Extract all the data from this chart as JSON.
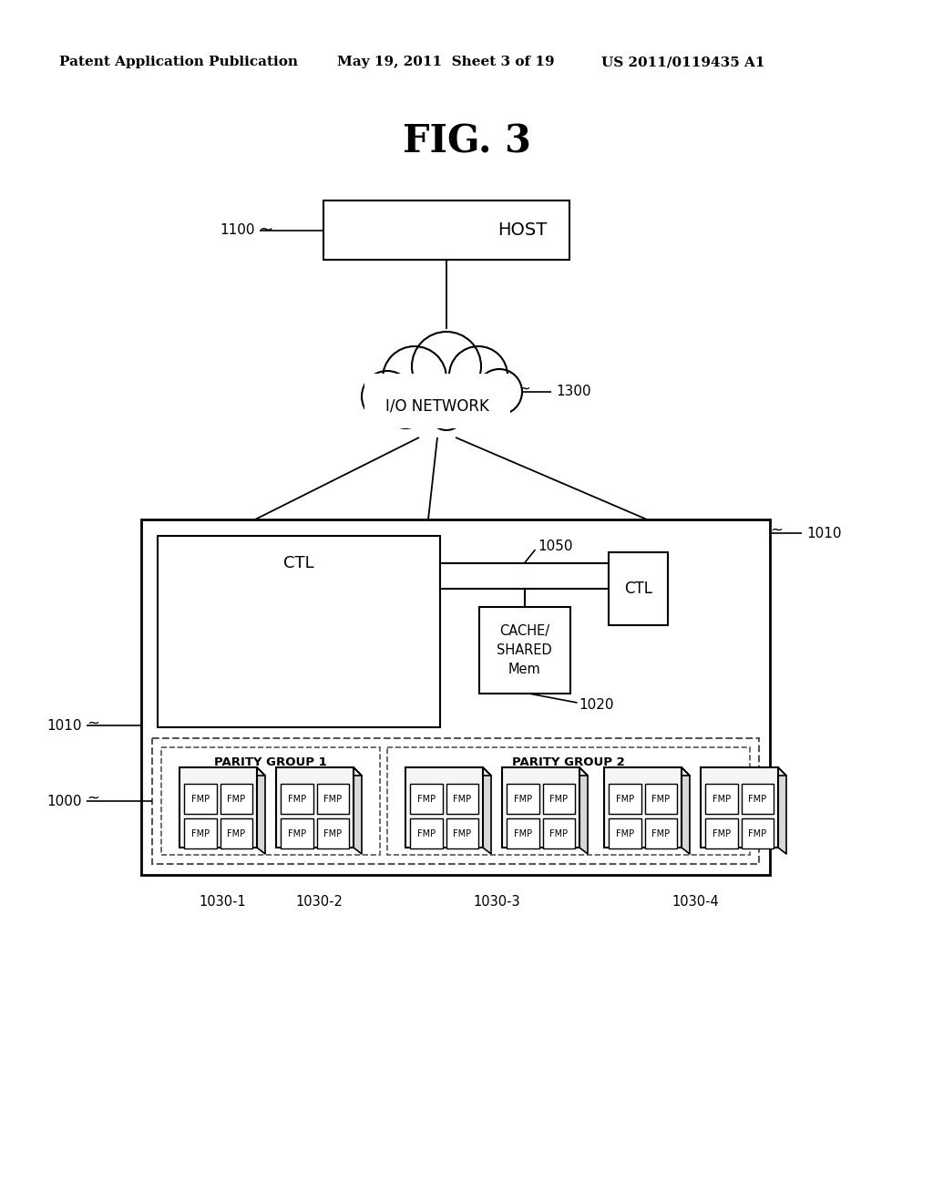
{
  "title": "FIG. 3",
  "header_left": "Patent Application Publication",
  "header_center": "May 19, 2011  Sheet 3 of 19",
  "header_right": "US 2011/0119435 A1",
  "bg_color": "#ffffff",
  "line_color": "#000000",
  "label_1100": "1100",
  "label_1300": "1300",
  "label_1010_top": "1010",
  "label_1010_side": "1010",
  "label_1050": "1050",
  "label_1020": "1020",
  "label_1000": "1000",
  "label_1030_1": "1030-1",
  "label_1030_2": "1030-2",
  "label_1030_3": "1030-3",
  "label_1030_4": "1030-4",
  "text_host": "HOST",
  "text_io_network": "I/O NETWORK",
  "text_ctl": "CTL",
  "text_cache": "CACHE/\nSHARED\nMem",
  "text_parity1": "PARITY GROUP 1",
  "text_parity2": "PARITY GROUP 2",
  "text_fmp": "FMP"
}
